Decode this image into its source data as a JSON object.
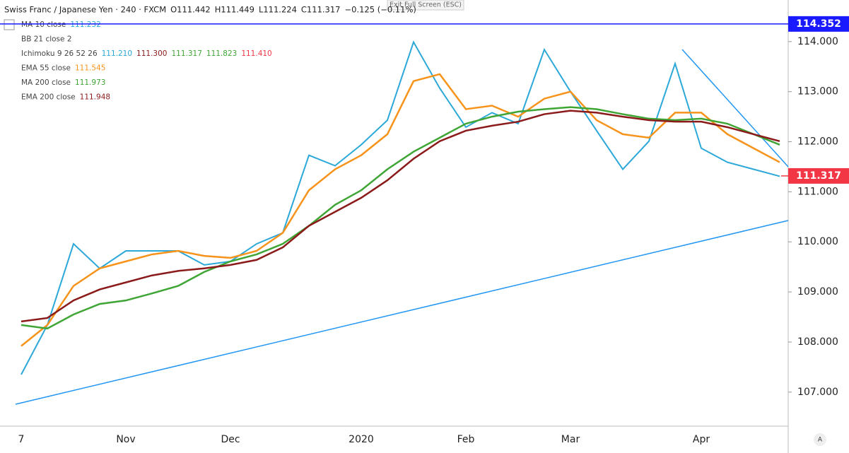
{
  "chart_data": {
    "type": "line",
    "header": {
      "symbol": "Swiss Franc / Japanese Yen · 240 · FXCM",
      "open": "O111.442",
      "high": "H111.449",
      "low": "L111.224",
      "close": "C111.317",
      "change": "−0.125 (−0.11%)"
    },
    "button": "Exit Full Screen (ESC)",
    "corner": "A",
    "categories": [
      "7",
      null,
      null,
      null,
      "Nov",
      null,
      null,
      null,
      "Dec",
      null,
      null,
      null,
      null,
      "2020",
      null,
      null,
      null,
      "Feb",
      null,
      null,
      null,
      "Mar",
      null,
      null,
      null,
      null,
      "Apr",
      null,
      null,
      null
    ],
    "ylim": [
      106.32,
      114.83
    ],
    "yticks": [
      {
        "value": 107,
        "label": "107.000"
      },
      {
        "value": 108,
        "label": "108.000"
      },
      {
        "value": 109,
        "label": "109.000"
      },
      {
        "value": 110,
        "label": "110.000"
      },
      {
        "value": 111,
        "label": "111.000"
      },
      {
        "value": 112,
        "label": "112.000"
      },
      {
        "value": 113,
        "label": "113.000"
      },
      {
        "value": 114,
        "label": "114.000"
      }
    ],
    "grid": false,
    "price_labels": [
      {
        "value": 114.352,
        "color": "#1a1aff"
      },
      {
        "value": 111.317,
        "color": "#f23645"
      }
    ],
    "series": [
      {
        "name": "MA 10 close",
        "legend_value": "111.232",
        "color": "#2ba8d8",
        "values": [
          107.35,
          108.34,
          109.96,
          109.47,
          109.82,
          109.82,
          109.82,
          109.54,
          109.61,
          109.96,
          110.18,
          111.73,
          111.52,
          111.94,
          112.43,
          113.99,
          113.07,
          112.29,
          112.58,
          112.36,
          113.84,
          113.0,
          112.22,
          111.45,
          112.01,
          113.56,
          111.87,
          111.59,
          111.45,
          111.31
        ]
      },
      {
        "name": "EMA 55 close",
        "legend_value": "111.545",
        "color": "#f7931a",
        "values": [
          107.92,
          108.34,
          109.12,
          109.47,
          109.61,
          109.75,
          109.82,
          109.72,
          109.68,
          109.82,
          110.18,
          111.03,
          111.45,
          111.73,
          112.15,
          113.21,
          113.35,
          112.65,
          112.72,
          112.5,
          112.86,
          113.0,
          112.43,
          112.15,
          112.08,
          112.58,
          112.58,
          112.15,
          111.87,
          111.59
        ]
      },
      {
        "name": "MA 200 close",
        "legend_value": "111.973",
        "color": "#3fa535",
        "values": [
          108.34,
          108.27,
          108.55,
          108.76,
          108.83,
          108.97,
          109.12,
          109.4,
          109.61,
          109.75,
          109.96,
          110.32,
          110.74,
          111.03,
          111.45,
          111.8,
          112.08,
          112.36,
          112.5,
          112.6,
          112.65,
          112.69,
          112.65,
          112.55,
          112.46,
          112.43,
          112.46,
          112.36,
          112.15,
          111.94
        ]
      },
      {
        "name": "EMA 200 close",
        "legend_value": "111.948",
        "color": "#8b1a1a",
        "values": [
          108.41,
          108.48,
          108.83,
          109.05,
          109.19,
          109.33,
          109.42,
          109.47,
          109.54,
          109.64,
          109.89,
          110.32,
          110.6,
          110.88,
          111.23,
          111.66,
          112.01,
          112.22,
          112.32,
          112.4,
          112.55,
          112.62,
          112.58,
          112.5,
          112.43,
          112.4,
          112.4,
          112.29,
          112.15,
          112.01
        ]
      }
    ],
    "indicator_rows": [
      {
        "name": "BB 21 close 2",
        "values": []
      },
      {
        "name": "Ichimoku 9 26 52 26",
        "values": [
          {
            "text": "111.210",
            "color": "#2ba8d8"
          },
          {
            "text": "111.300",
            "color": "#8b1a1a"
          },
          {
            "text": "111.317",
            "color": "#3fa535"
          },
          {
            "text": "111.823",
            "color": "#3fa535"
          },
          {
            "text": "111.410",
            "color": "#f23645"
          }
        ]
      }
    ]
  }
}
